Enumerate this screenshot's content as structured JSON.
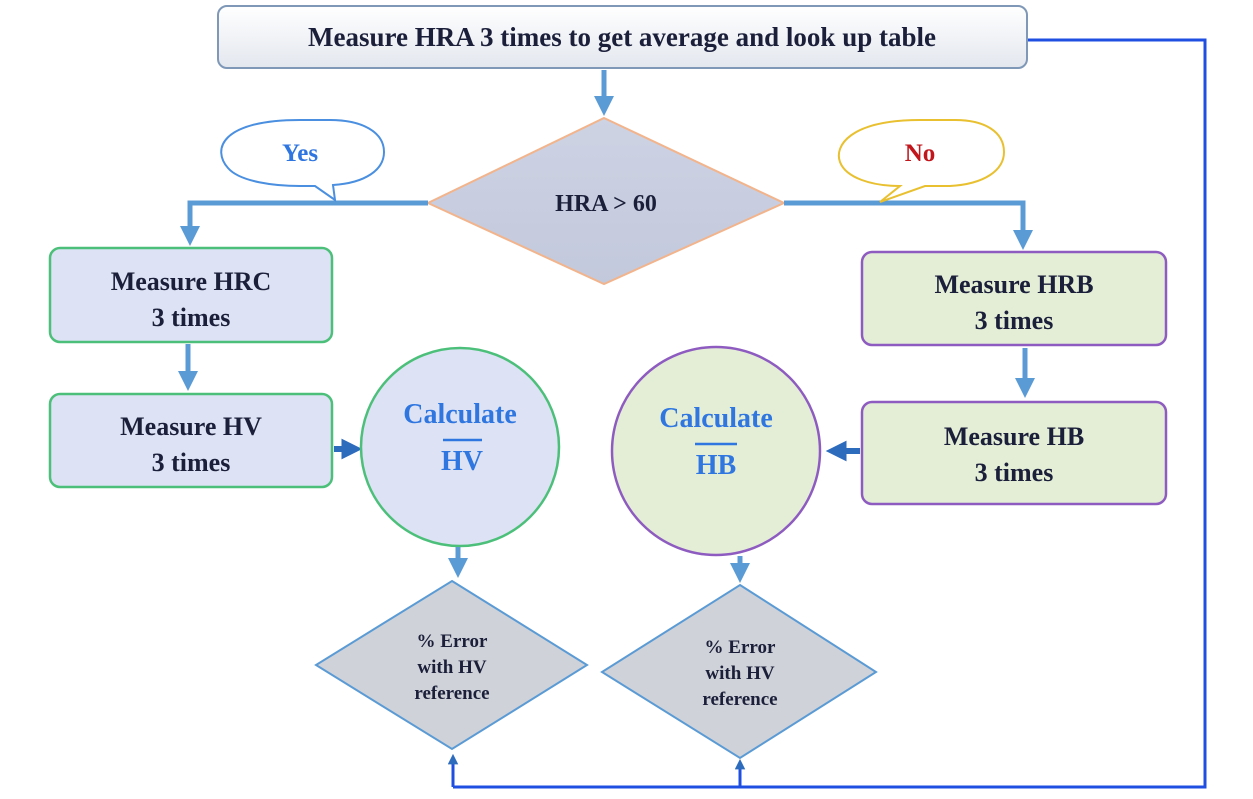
{
  "nodes": {
    "start": {
      "text": "Measure HRA 3 times to get average and look up table"
    },
    "decision": {
      "text": "HRA > 60"
    },
    "yes": {
      "text": "Yes"
    },
    "no": {
      "text": "No"
    },
    "hrc": {
      "line1": "Measure HRC",
      "line2": "3 times"
    },
    "hv": {
      "line1": "Measure HV",
      "line2": "3 times"
    },
    "hrb": {
      "line1": "Measure HRB",
      "line2": "3 times"
    },
    "hb": {
      "line1": "Measure HB",
      "line2": "3 times"
    },
    "calc_hv": {
      "line1": "Calculate",
      "line2": "HV"
    },
    "calc_hb": {
      "line1": "Calculate",
      "line2": "HB"
    },
    "err_left": {
      "line1": "% Error",
      "line2": "with HV",
      "line3": "reference"
    },
    "err_right": {
      "line1": "% Error",
      "line2": "with HV",
      "line3": "reference"
    }
  },
  "colors": {
    "flow_arrow": "#5b9bd5",
    "loop_line": "#1f4fe0",
    "box_blue_fill": "#dde3f4",
    "box_green_border": "#4cc07a",
    "box_green_fill": "#e4eed7",
    "box_purple_border": "#8e5cc0",
    "diamond_fill": "#c9cfe0",
    "diamond_border": "#f2b48c",
    "error_diamond_fill": "#cfd2d8",
    "error_diamond_border": "#5b9bd5",
    "yes_callout_border": "#4a8fe0",
    "no_callout_border": "#e8c030"
  }
}
